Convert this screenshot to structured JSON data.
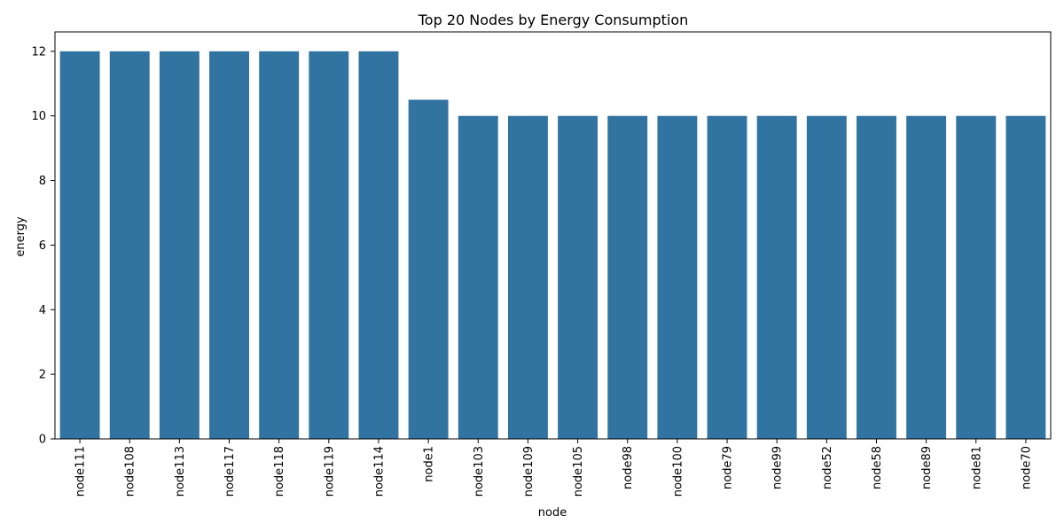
{
  "chart_data": {
    "type": "bar",
    "title": "Top 20 Nodes by Energy Consumption",
    "xlabel": "node",
    "ylabel": "energy",
    "categories": [
      "node111",
      "node108",
      "node113",
      "node117",
      "node118",
      "node119",
      "node114",
      "node1",
      "node103",
      "node109",
      "node105",
      "node98",
      "node100",
      "node79",
      "node99",
      "node52",
      "node58",
      "node89",
      "node81",
      "node70"
    ],
    "values": [
      12,
      12,
      12,
      12,
      12,
      12,
      12,
      10.5,
      10,
      10,
      10,
      10,
      10,
      10,
      10,
      10,
      10,
      10,
      10,
      10
    ],
    "ylim": [
      0,
      12.6
    ],
    "yticks": [
      0,
      2,
      4,
      6,
      8,
      10,
      12
    ],
    "bar_color": "#3274a1",
    "grid": false,
    "legend": "none"
  }
}
